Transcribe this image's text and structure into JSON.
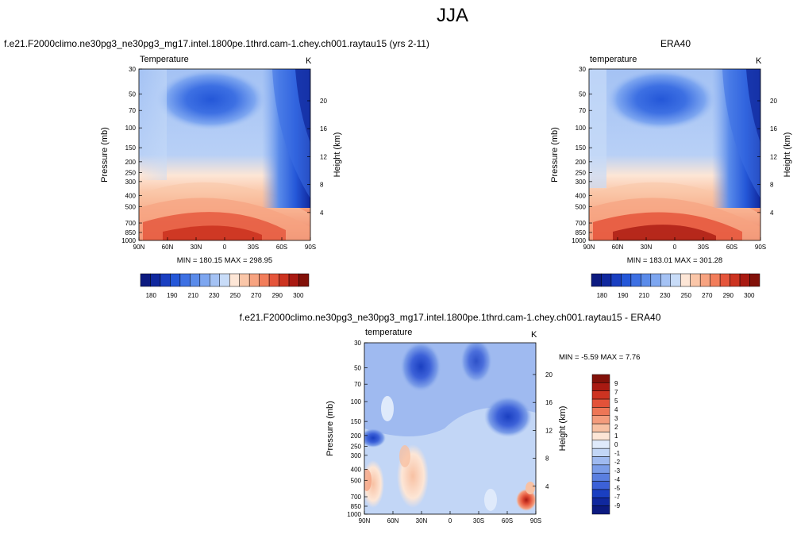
{
  "page": {
    "title": "JJA"
  },
  "colors": {
    "abs_palette": [
      "#0c1a80",
      "#10289e",
      "#1a3fc1",
      "#2457d8",
      "#3d70e3",
      "#5a8bea",
      "#7da6f0",
      "#a4c2f4",
      "#c8dcf8",
      "#fde6d6",
      "#fac6a8",
      "#f7a380",
      "#f27d5a",
      "#e5553b",
      "#cc3320",
      "#a91a12",
      "#821109"
    ],
    "diff_palette": [
      "#0c1a80",
      "#10289e",
      "#1a3fc1",
      "#3c61d8",
      "#5a7fe0",
      "#7b9de8",
      "#9fbaf0",
      "#c2d6f6",
      "#dfeafb",
      "#fde6d6",
      "#f8c1a3",
      "#f49c7c",
      "#ee7656",
      "#e35239",
      "#cd3321",
      "#a91a12",
      "#821109"
    ]
  },
  "chart_data": [
    {
      "type": "heatmap",
      "id": "model",
      "title": "f.e21.F2000climo.ne30pg3_ne30pg3_mg17.intel.1800pe.1thrd.cam-1.chey.ch001.raytau15 (yrs 2-11)",
      "left_label": "Temperature",
      "right_label": "K",
      "ylabel": "Pressure (mb)",
      "ylabel_right": "Height (km)",
      "x_ticks": [
        "90N",
        "60N",
        "30N",
        "0",
        "30S",
        "60S",
        "90S"
      ],
      "x_values": [
        90,
        60,
        30,
        0,
        -30,
        -60,
        -90
      ],
      "y_ticks": [
        "30",
        "50",
        "70",
        "100",
        "150",
        "200",
        "250",
        "300",
        "400",
        "500",
        "700",
        "850",
        "1000"
      ],
      "y_values": [
        30,
        50,
        70,
        100,
        150,
        200,
        250,
        300,
        400,
        500,
        700,
        850,
        1000
      ],
      "y_right_ticks": [
        "20",
        "16",
        "12",
        "8",
        "4"
      ],
      "y_right_values": [
        20,
        16,
        12,
        8,
        4
      ],
      "stats": "MIN = 180.15   MAX = 298.95",
      "min": 180.15,
      "max": 298.95,
      "colorbar": {
        "labels": [
          "180",
          "190",
          "210",
          "230",
          "250",
          "270",
          "290",
          "300"
        ],
        "levels": [
          180,
          185,
          190,
          200,
          210,
          220,
          230,
          240,
          250,
          260,
          270,
          280,
          290,
          295,
          300
        ]
      }
    },
    {
      "type": "heatmap",
      "id": "obs",
      "title": "ERA40",
      "left_label": "temperature",
      "right_label": "K",
      "ylabel": "Pressure (mb)",
      "ylabel_right": "Height (km)",
      "x_ticks": [
        "90N",
        "60N",
        "30N",
        "0",
        "30S",
        "60S",
        "90S"
      ],
      "x_values": [
        90,
        60,
        30,
        0,
        -30,
        -60,
        -90
      ],
      "y_ticks": [
        "30",
        "50",
        "70",
        "100",
        "150",
        "200",
        "250",
        "300",
        "400",
        "500",
        "700",
        "850",
        "1000"
      ],
      "y_values": [
        30,
        50,
        70,
        100,
        150,
        200,
        250,
        300,
        400,
        500,
        700,
        850,
        1000
      ],
      "y_right_ticks": [
        "20",
        "16",
        "12",
        "8",
        "4"
      ],
      "y_right_values": [
        20,
        16,
        12,
        8,
        4
      ],
      "stats": "MIN = 183.01   MAX = 301.28",
      "min": 183.01,
      "max": 301.28,
      "colorbar": {
        "labels": [
          "180",
          "190",
          "210",
          "230",
          "250",
          "270",
          "290",
          "300"
        ],
        "levels": [
          180,
          185,
          190,
          200,
          210,
          220,
          230,
          240,
          250,
          260,
          270,
          280,
          290,
          295,
          300
        ]
      }
    },
    {
      "type": "heatmap",
      "id": "diff",
      "title": "f.e21.F2000climo.ne30pg3_ne30pg3_mg17.intel.1800pe.1thrd.cam-1.chey.ch001.raytau15 - ERA40",
      "left_label": "temperature",
      "right_label": "K",
      "ylabel": "Pressure (mb)",
      "ylabel_right": "Height (km)",
      "x_ticks": [
        "90N",
        "60N",
        "30N",
        "0",
        "30S",
        "60S",
        "90S"
      ],
      "x_values": [
        90,
        60,
        30,
        0,
        -30,
        -60,
        -90
      ],
      "y_ticks": [
        "30",
        "50",
        "70",
        "100",
        "150",
        "200",
        "250",
        "300",
        "400",
        "500",
        "700",
        "850",
        "1000"
      ],
      "y_values": [
        30,
        50,
        70,
        100,
        150,
        200,
        250,
        300,
        400,
        500,
        700,
        850,
        1000
      ],
      "y_right_ticks": [
        "20",
        "16",
        "12",
        "8",
        "4"
      ],
      "y_right_values": [
        20,
        16,
        12,
        8,
        4
      ],
      "stats": "MIN =  -5.59   MAX =   7.76",
      "min": -5.59,
      "max": 7.76,
      "colorbar": {
        "labels": [
          "9",
          "7",
          "5",
          "4",
          "3",
          "2",
          "1",
          "0",
          "-1",
          "-2",
          "-3",
          "-4",
          "-5",
          "-7",
          "-9"
        ],
        "levels": [
          9,
          7,
          5,
          4,
          3,
          2,
          1,
          0,
          -1,
          -2,
          -3,
          -4,
          -5,
          -7,
          -9
        ]
      }
    }
  ]
}
